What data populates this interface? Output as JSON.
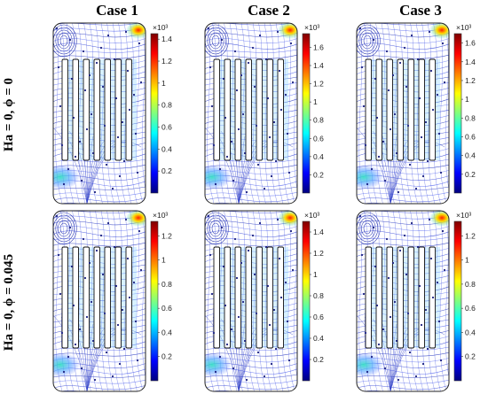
{
  "columns": [
    "Case 1",
    "Case 2",
    "Case 3"
  ],
  "rows": [
    {
      "label": "Ha = 0,  ϕ = 0"
    },
    {
      "label": "Ha = 0,  ϕ = 0.045"
    }
  ],
  "colorbar_colors": [
    "#00007f",
    "#0000ff",
    "#007fff",
    "#00ffff",
    "#7fff7f",
    "#ffff00",
    "#ff7f00",
    "#ff0000",
    "#7f0000"
  ],
  "panels": [
    {
      "multiplier": "×10³",
      "ticks": [
        "0.2",
        "0.4",
        "0.6",
        "0.8",
        "1",
        "1.2",
        "1.4"
      ],
      "max": 1.45
    },
    {
      "multiplier": "×10³",
      "ticks": [
        "0.2",
        "0.4",
        "0.6",
        "0.8",
        "1",
        "1.2",
        "1.4",
        "1.6"
      ],
      "max": 1.75
    },
    {
      "multiplier": "×10³",
      "ticks": [
        "0.2",
        "0.4",
        "0.6",
        "0.8",
        "1",
        "1.2",
        "1.4",
        "1.6"
      ],
      "max": 1.7
    },
    {
      "multiplier": "×10³",
      "ticks": [
        "0.2",
        "0.4",
        "0.6",
        "0.8",
        "1",
        "1.2"
      ],
      "max": 1.32
    },
    {
      "multiplier": "×10³",
      "ticks": [
        "0.2",
        "0.4",
        "0.6",
        "0.8",
        "1",
        "1.2",
        "1.4"
      ],
      "max": 1.5
    },
    {
      "multiplier": "×10³",
      "ticks": [
        "0.2",
        "0.4",
        "0.6",
        "0.8",
        "1",
        "1.2"
      ],
      "max": 1.32
    }
  ]
}
